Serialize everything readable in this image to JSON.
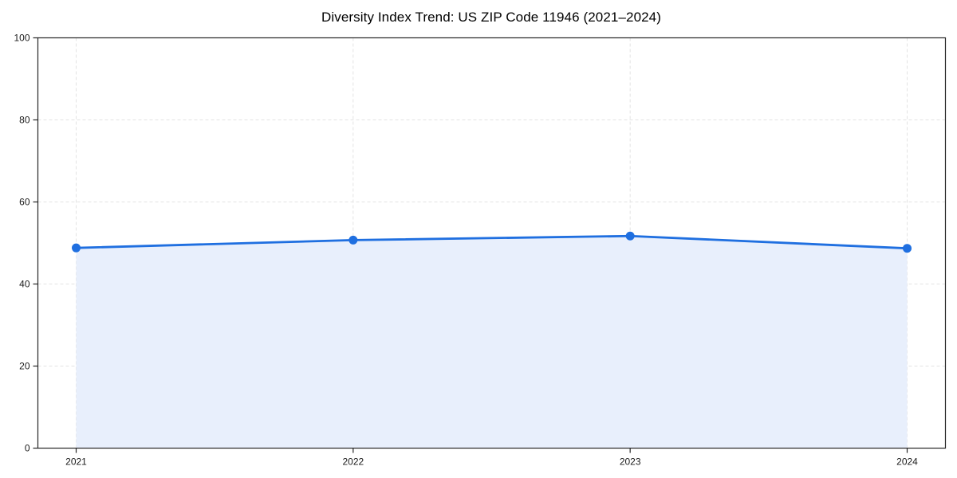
{
  "chart_data": {
    "type": "line",
    "title": "Diversity Index Trend: US ZIP Code 11946 (2021–2024)",
    "categories": [
      "2021",
      "2022",
      "2023",
      "2024"
    ],
    "values": [
      48.8,
      50.7,
      51.7,
      48.7
    ],
    "series_name": "Diversity Index",
    "xlabel": "",
    "ylabel": "",
    "ylim": [
      0,
      100
    ],
    "yticks": [
      0,
      20,
      40,
      60,
      80,
      100
    ],
    "grid": true,
    "grid_style": "dashed",
    "legend": false,
    "markers": true,
    "area_fill_between_first_and_last_point": true,
    "style": {
      "line_color": "#1f6fe0",
      "marker_color": "#1f6fe0",
      "area_fill": "#e8effc",
      "grid_color": "#e3e3e3",
      "spine_color": "#262626",
      "tick_color": "#262626",
      "text_color": "#1a1a1a",
      "background": "#ffffff"
    }
  }
}
